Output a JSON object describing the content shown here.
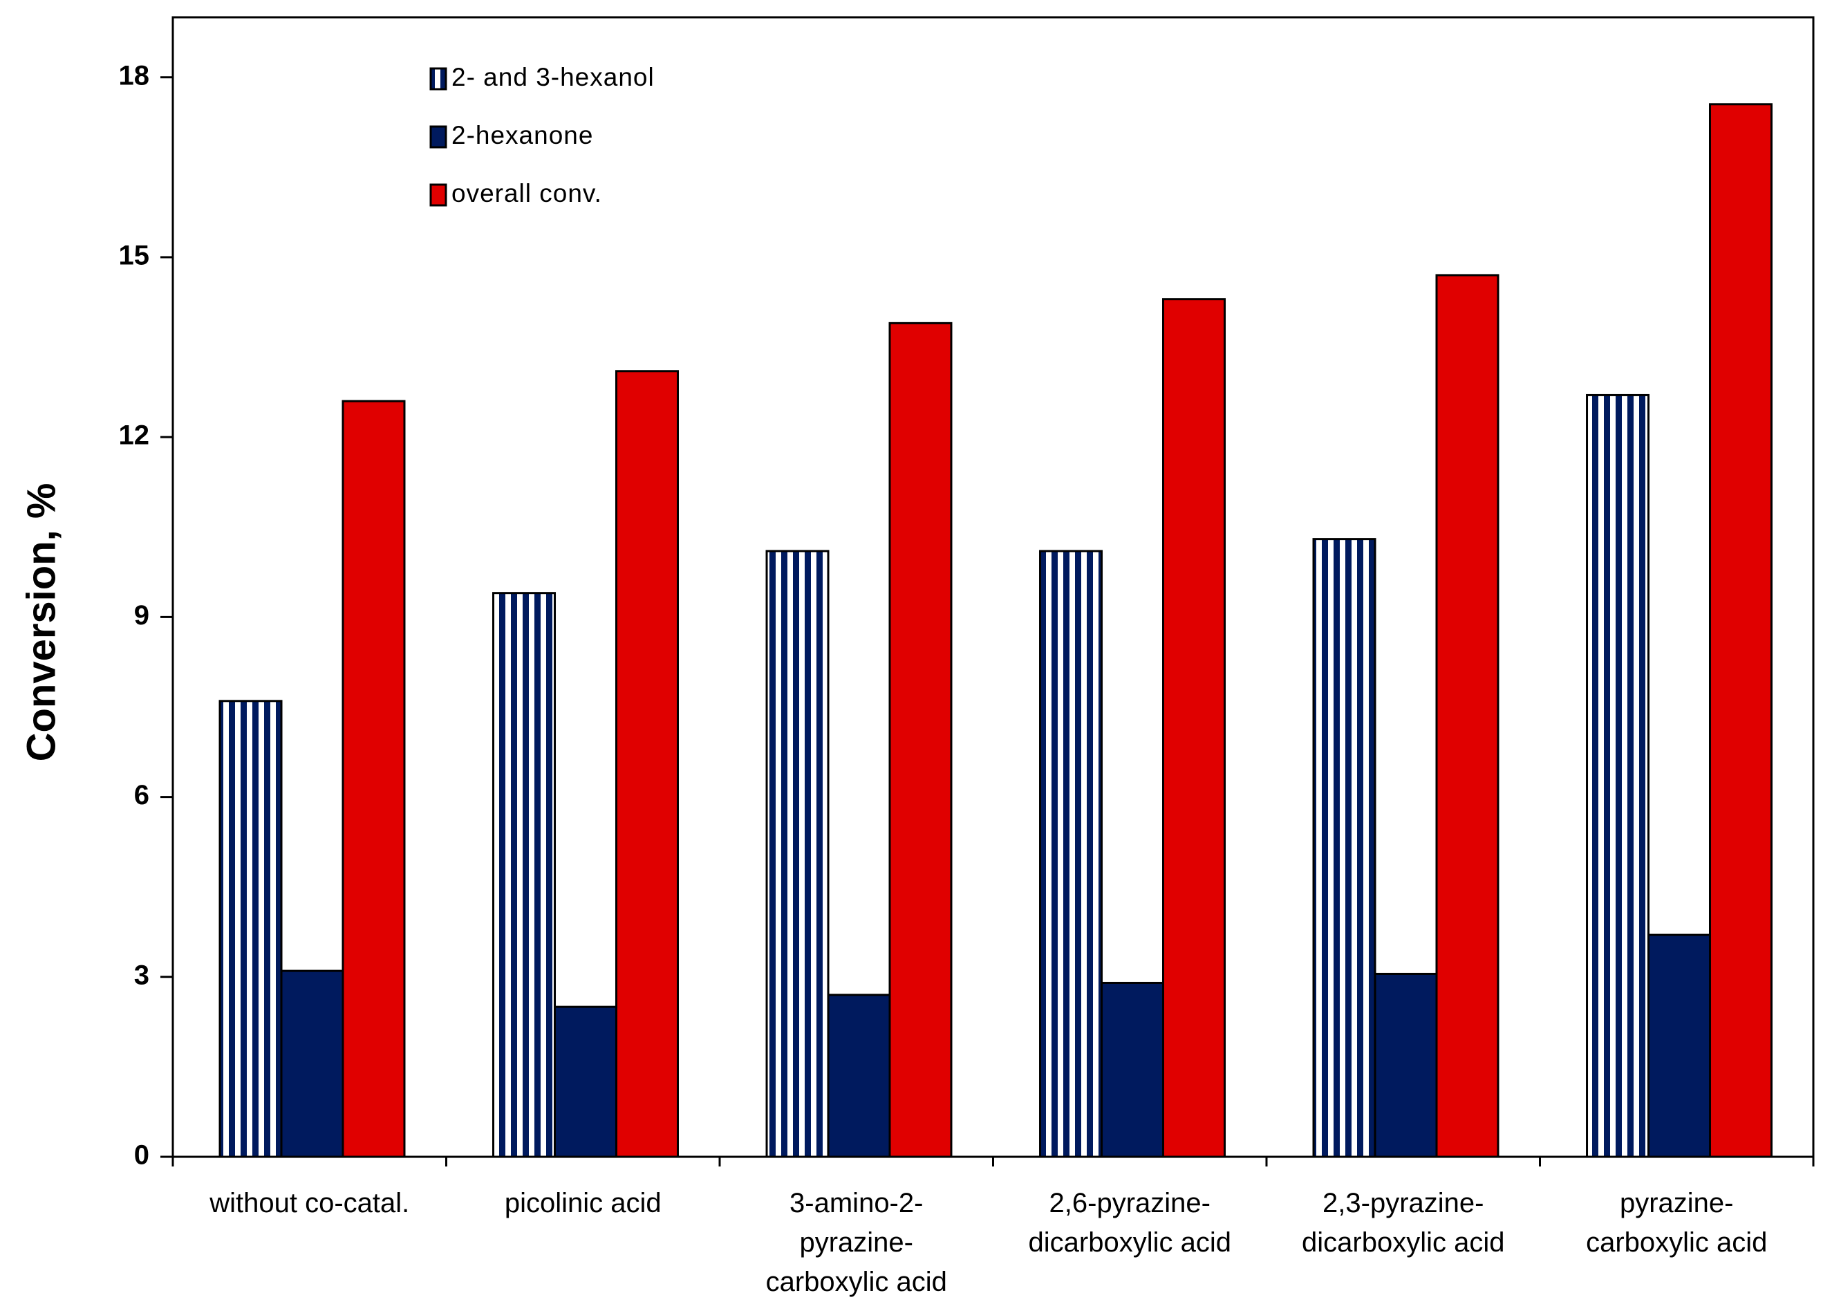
{
  "chart_data": {
    "type": "bar",
    "y_label": "Conversion, %",
    "categories": [
      "without co-catal.",
      "picolinic acid",
      "3-amino-2-\npyrazine-\ncarboxylic acid",
      "2,6-pyrazine-\ndicarboxylic acid",
      "2,3-pyrazine-\ndicarboxylic acid",
      "pyrazine-\ncarboxylic acid"
    ],
    "series": [
      {
        "name": "2- and 3-hexanol",
        "color": "#001a5e",
        "pattern": "vertical-stripes",
        "values": [
          7.6,
          9.4,
          10.1,
          10.1,
          10.3,
          12.7
        ]
      },
      {
        "name": "2-hexanone",
        "color": "#001a5e",
        "values": [
          3.1,
          2.5,
          2.7,
          2.9,
          3.05,
          3.7
        ]
      },
      {
        "name": "overall conv.",
        "color": "#e00000",
        "values": [
          12.6,
          13.1,
          13.9,
          14.3,
          14.7,
          17.55
        ]
      }
    ],
    "ylim": [
      0,
      19
    ],
    "yticks": [
      0,
      3,
      6,
      9,
      12,
      15,
      18
    ],
    "grid": false,
    "legend_position": "top-left"
  }
}
